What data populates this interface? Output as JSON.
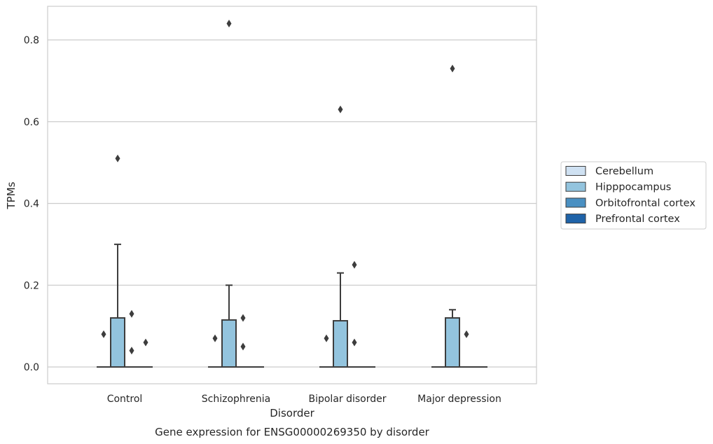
{
  "chart_data": {
    "type": "box",
    "xlabel": "Disorder",
    "ylabel": "TPMs",
    "caption": "Gene expression for ENSG00000269350 by disorder",
    "ylim": [
      -0.04,
      0.885
    ],
    "yticks": [
      "0.0",
      "0.2",
      "0.4",
      "0.6",
      "0.8"
    ],
    "ytick_values": [
      0.0,
      0.2,
      0.4,
      0.6,
      0.8
    ],
    "categories": [
      "Control",
      "Schizophrenia",
      "Bipolar disorder",
      "Major depression"
    ],
    "grid": "horizontal",
    "legend_placement": "right",
    "series": [
      {
        "name": "Cerebellum",
        "color": "#cfe1f2",
        "boxes": [
          {
            "q1": 0,
            "median": 0,
            "q3": 0,
            "whisker_low": 0,
            "whisker_high": 0,
            "outliers": [
              0.08
            ]
          },
          {
            "q1": 0,
            "median": 0,
            "q3": 0,
            "whisker_low": 0,
            "whisker_high": 0,
            "outliers": [
              0.07
            ]
          },
          {
            "q1": 0,
            "median": 0,
            "q3": 0,
            "whisker_low": 0,
            "whisker_high": 0,
            "outliers": [
              0.07
            ]
          },
          {
            "q1": 0,
            "median": 0,
            "q3": 0,
            "whisker_low": 0,
            "whisker_high": 0,
            "outliers": []
          }
        ]
      },
      {
        "name": "Hipppocampus",
        "color": "#93c4de",
        "boxes": [
          {
            "q1": 0,
            "median": 0,
            "q3": 0.12,
            "whisker_low": 0,
            "whisker_high": 0.3,
            "outliers": [
              0.51
            ]
          },
          {
            "q1": 0,
            "median": 0,
            "q3": 0.115,
            "whisker_low": 0,
            "whisker_high": 0.2,
            "outliers": [
              0.84
            ]
          },
          {
            "q1": 0,
            "median": 0,
            "q3": 0.113,
            "whisker_low": 0,
            "whisker_high": 0.23,
            "outliers": [
              0.63
            ]
          },
          {
            "q1": 0,
            "median": 0,
            "q3": 0.12,
            "whisker_low": 0,
            "whisker_high": 0.14,
            "outliers": [
              0.73
            ]
          }
        ]
      },
      {
        "name": "Orbitofrontal cortex",
        "color": "#4a90c2",
        "boxes": [
          {
            "q1": 0,
            "median": 0,
            "q3": 0,
            "whisker_low": 0,
            "whisker_high": 0,
            "outliers": [
              0.13,
              0.04
            ]
          },
          {
            "q1": 0,
            "median": 0,
            "q3": 0,
            "whisker_low": 0,
            "whisker_high": 0,
            "outliers": [
              0.12,
              0.05
            ]
          },
          {
            "q1": 0,
            "median": 0,
            "q3": 0,
            "whisker_low": 0,
            "whisker_high": 0,
            "outliers": [
              0.06,
              0.25
            ]
          },
          {
            "q1": 0,
            "median": 0,
            "q3": 0,
            "whisker_low": 0,
            "whisker_high": 0,
            "outliers": [
              0.08
            ]
          }
        ]
      },
      {
        "name": "Prefrontal cortex",
        "color": "#1f63a8",
        "boxes": [
          {
            "q1": 0,
            "median": 0,
            "q3": 0,
            "whisker_low": 0,
            "whisker_high": 0,
            "outliers": [
              0.06
            ]
          },
          {
            "q1": 0,
            "median": 0,
            "q3": 0,
            "whisker_low": 0,
            "whisker_high": 0,
            "outliers": []
          },
          {
            "q1": 0,
            "median": 0,
            "q3": 0,
            "whisker_low": 0,
            "whisker_high": 0,
            "outliers": []
          },
          {
            "q1": 0,
            "median": 0,
            "q3": 0,
            "whisker_low": 0,
            "whisker_high": 0,
            "outliers": []
          }
        ]
      }
    ]
  }
}
